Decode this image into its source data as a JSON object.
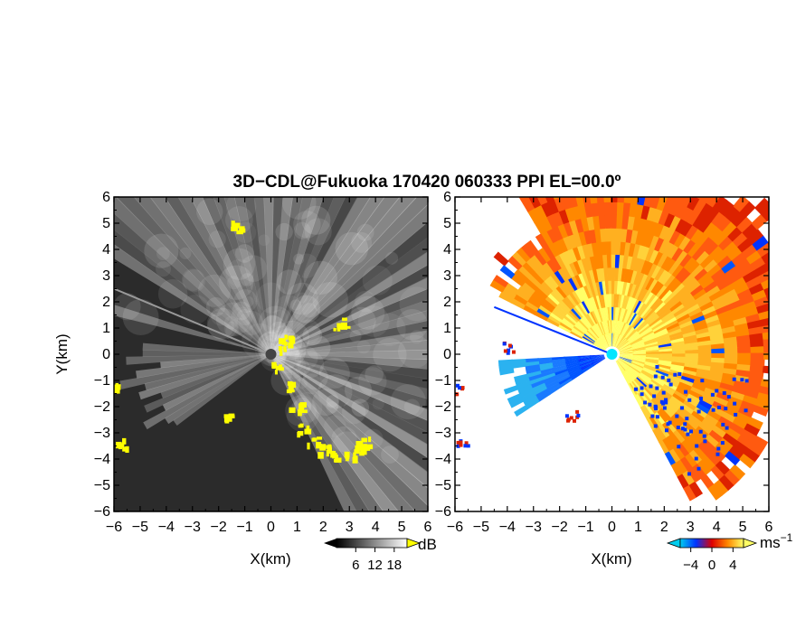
{
  "chart_data": {
    "title": "3D−CDL@Fukuoka 170420 060333 PPI EL=00.0º",
    "panels": [
      {
        "name": "power",
        "type": "heatmap",
        "xlabel": "X(km)",
        "ylabel": "Y(km)",
        "xlim": [
          -6,
          6
        ],
        "ylim": [
          -6,
          6
        ],
        "xticks": [
          -6,
          -5,
          -4,
          -3,
          -2,
          -1,
          0,
          1,
          2,
          3,
          4,
          5,
          6
        ],
        "yticks": [
          -6,
          -5,
          -4,
          -3,
          -2,
          -1,
          0,
          1,
          2,
          3,
          4,
          5,
          6
        ],
        "xtick_labels": [
          "−6",
          "−5",
          "−4",
          "−3",
          "−2",
          "−1",
          "0",
          "1",
          "2",
          "3",
          "4",
          "5",
          "6"
        ],
        "ytick_labels": [
          "−6",
          "−5",
          "−4",
          "−3",
          "−2",
          "−1",
          "0",
          "1",
          "2",
          "3",
          "4",
          "5",
          "6"
        ],
        "colorbar": {
          "unit": "dB",
          "ticks": [
            6,
            12,
            18
          ],
          "tick_labels": [
            "6",
            "12",
            "18"
          ],
          "range": [
            0,
            22
          ],
          "colors": [
            "#000000",
            "#ffffff"
          ],
          "overflow_color": "#ffff00"
        },
        "background": "#2b2b2b",
        "highlight_color": "#ffff00"
      },
      {
        "name": "doppler-velocity",
        "type": "heatmap",
        "xlabel": "X(km)",
        "ylabel": "",
        "xlim": [
          -6,
          6
        ],
        "ylim": [
          -6,
          6
        ],
        "xticks": [
          -6,
          -5,
          -4,
          -3,
          -2,
          -1,
          0,
          1,
          2,
          3,
          4,
          5,
          6
        ],
        "yticks": [
          -6,
          -5,
          -4,
          -3,
          -2,
          -1,
          0,
          1,
          2,
          3,
          4,
          5,
          6
        ],
        "xtick_labels": [
          "−6",
          "−5",
          "−4",
          "−3",
          "−2",
          "−1",
          "0",
          "1",
          "2",
          "3",
          "4",
          "5",
          "6"
        ],
        "ytick_labels": [
          "−6",
          "−5",
          "−4",
          "−3",
          "−2",
          "−1",
          "0",
          "1",
          "2",
          "3",
          "4",
          "5",
          "6"
        ],
        "colorbar": {
          "unit": "ms",
          "unit_exp": "−1",
          "ticks": [
            -4,
            0,
            4
          ],
          "tick_labels": [
            "−4",
            "0",
            "4"
          ],
          "range": [
            -6,
            6
          ],
          "colors": [
            "#00ccee",
            "#0033ff",
            "#dd0000",
            "#ff8800",
            "#ffff66"
          ]
        },
        "background": "#ffffff",
        "radar_marker_color": "#00e5ff"
      }
    ]
  }
}
